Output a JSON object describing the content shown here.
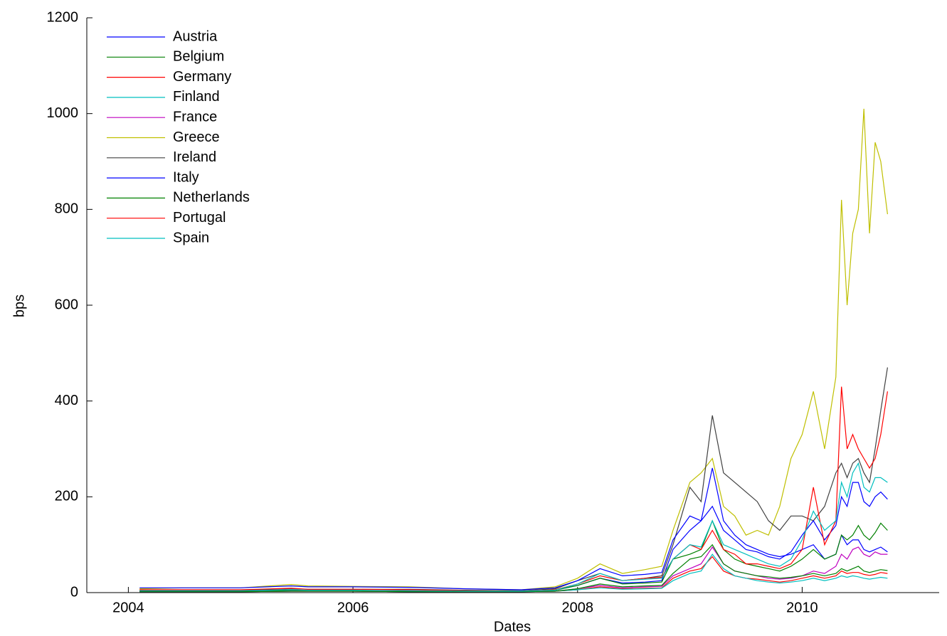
{
  "chart_data": {
    "type": "line",
    "x_label": "Dates",
    "y_label": "bps",
    "xlim": [
      2003.63,
      2011.22
    ],
    "xticks": [
      2004,
      2006,
      2008,
      2010
    ],
    "ylim": [
      0,
      1200
    ],
    "yticks": [
      0,
      200,
      400,
      600,
      800,
      1000,
      1200
    ],
    "grid": false,
    "legend": "upper-left",
    "x": [
      2004.1,
      2004.5,
      2005.0,
      2005.45,
      2005.6,
      2006.0,
      2006.5,
      2007.0,
      2007.5,
      2007.8,
      2008.0,
      2008.2,
      2008.4,
      2008.6,
      2008.75,
      2008.85,
      2009.0,
      2009.1,
      2009.2,
      2009.3,
      2009.4,
      2009.5,
      2009.6,
      2009.7,
      2009.8,
      2009.9,
      2010.0,
      2010.1,
      2010.2,
      2010.3,
      2010.35,
      2010.4,
      2010.45,
      2010.5,
      2010.55,
      2010.6,
      2010.65,
      2010.7,
      2010.76
    ],
    "series": [
      {
        "name": "Austria",
        "color": "#0000ff",
        "values": [
          3,
          3,
          3,
          5,
          4,
          4,
          4,
          3,
          2,
          5,
          15,
          30,
          20,
          22,
          25,
          90,
          130,
          150,
          260,
          150,
          120,
          100,
          90,
          80,
          75,
          80,
          90,
          100,
          70,
          80,
          120,
          100,
          110,
          110,
          90,
          85,
          90,
          95,
          85
        ]
      },
      {
        "name": "Belgium",
        "color": "#008000",
        "values": [
          3,
          3,
          3,
          5,
          4,
          4,
          3,
          3,
          2,
          5,
          15,
          30,
          18,
          20,
          22,
          70,
          80,
          90,
          150,
          90,
          70,
          60,
          55,
          50,
          45,
          55,
          70,
          90,
          70,
          80,
          120,
          110,
          120,
          140,
          120,
          110,
          125,
          145,
          130
        ]
      },
      {
        "name": "Germany",
        "color": "#ff0000",
        "values": [
          2,
          2,
          2,
          3,
          3,
          3,
          2,
          2,
          2,
          3,
          6,
          12,
          8,
          9,
          10,
          30,
          45,
          50,
          75,
          45,
          35,
          30,
          28,
          25,
          22,
          25,
          30,
          35,
          30,
          35,
          45,
          40,
          42,
          42,
          38,
          36,
          38,
          42,
          40
        ]
      },
      {
        "name": "Finland",
        "color": "#00bfbf",
        "values": [
          2,
          2,
          2,
          3,
          3,
          3,
          2,
          2,
          2,
          3,
          6,
          10,
          7,
          8,
          9,
          25,
          40,
          45,
          80,
          50,
          35,
          30,
          25,
          22,
          20,
          22,
          25,
          30,
          25,
          30,
          35,
          32,
          35,
          33,
          30,
          28,
          30,
          32,
          30
        ]
      },
      {
        "name": "France",
        "color": "#bf00bf",
        "values": [
          2,
          2,
          2,
          3,
          3,
          3,
          2,
          2,
          2,
          3,
          8,
          15,
          10,
          12,
          13,
          35,
          50,
          60,
          95,
          60,
          45,
          40,
          35,
          30,
          28,
          30,
          35,
          45,
          40,
          55,
          80,
          70,
          90,
          95,
          80,
          75,
          85,
          80,
          80
        ]
      },
      {
        "name": "Greece",
        "color": "#bfbf00",
        "values": [
          8,
          10,
          10,
          17,
          14,
          13,
          12,
          8,
          6,
          12,
          30,
          60,
          40,
          48,
          55,
          130,
          230,
          250,
          280,
          180,
          160,
          120,
          130,
          120,
          180,
          280,
          330,
          420,
          300,
          450,
          820,
          600,
          750,
          800,
          1010,
          750,
          940,
          900,
          790
        ]
      },
      {
        "name": "Ireland",
        "color": "#404040",
        "values": [
          5,
          5,
          5,
          8,
          7,
          7,
          7,
          5,
          4,
          8,
          25,
          40,
          25,
          30,
          35,
          100,
          220,
          190,
          370,
          250,
          230,
          210,
          190,
          150,
          130,
          160,
          160,
          150,
          180,
          250,
          270,
          240,
          270,
          280,
          250,
          230,
          300,
          380,
          470
        ]
      },
      {
        "name": "Italy",
        "color": "#0000ff",
        "values": [
          10,
          10,
          10,
          14,
          12,
          12,
          11,
          8,
          6,
          10,
          25,
          50,
          35,
          38,
          42,
          110,
          160,
          150,
          180,
          130,
          110,
          90,
          85,
          75,
          70,
          85,
          120,
          150,
          110,
          140,
          200,
          180,
          230,
          230,
          190,
          180,
          200,
          210,
          195
        ]
      },
      {
        "name": "Netherlands",
        "color": "#008000",
        "values": [
          2,
          2,
          2,
          3,
          3,
          3,
          2,
          2,
          2,
          3,
          8,
          18,
          12,
          14,
          15,
          40,
          70,
          75,
          100,
          60,
          45,
          40,
          35,
          33,
          30,
          32,
          35,
          40,
          35,
          40,
          50,
          45,
          50,
          55,
          45,
          42,
          45,
          48,
          46
        ]
      },
      {
        "name": "Portugal",
        "color": "#ff0000",
        "values": [
          6,
          6,
          6,
          9,
          7,
          7,
          6,
          4,
          3,
          6,
          18,
          35,
          25,
          30,
          32,
          70,
          100,
          90,
          130,
          90,
          80,
          60,
          60,
          55,
          50,
          60,
          90,
          220,
          100,
          150,
          430,
          300,
          330,
          300,
          280,
          260,
          280,
          330,
          420
        ]
      },
      {
        "name": "Spain",
        "color": "#00bfbf",
        "values": [
          4,
          4,
          4,
          6,
          5,
          5,
          4,
          3,
          3,
          5,
          18,
          40,
          25,
          28,
          30,
          70,
          100,
          95,
          150,
          100,
          90,
          80,
          70,
          60,
          55,
          70,
          110,
          170,
          130,
          150,
          230,
          200,
          250,
          270,
          220,
          210,
          240,
          240,
          230
        ]
      }
    ]
  }
}
